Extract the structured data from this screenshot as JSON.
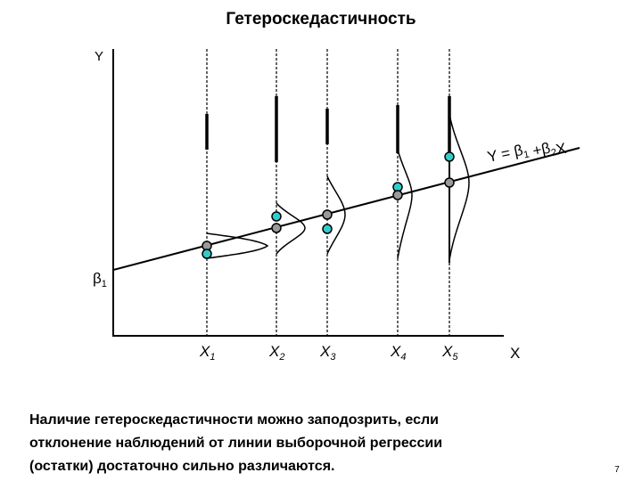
{
  "title": "Гетероскедастичность",
  "axes": {
    "y_label": "Y",
    "x_label": "X",
    "intercept": {
      "base": "β",
      "sub": "1"
    }
  },
  "equation": [
    {
      "base": "Y = β",
      "sub": "1"
    },
    {
      "base": " +β",
      "sub": "2"
    },
    {
      "base": "X",
      "sub": ""
    }
  ],
  "x_labels": [
    {
      "base": "X",
      "sub": "1"
    },
    {
      "base": "X",
      "sub": "2"
    },
    {
      "base": "X",
      "sub": "3"
    },
    {
      "base": "X",
      "sub": "4"
    },
    {
      "base": "X",
      "sub": "5"
    }
  ],
  "caption": [
    "Наличие гетероскедастичности можно заподозрить, если",
    "отклонение наблюдений от линии выборочной регрессии",
    "(остатки) достаточно сильно различаются."
  ],
  "page_number": "7"
}
